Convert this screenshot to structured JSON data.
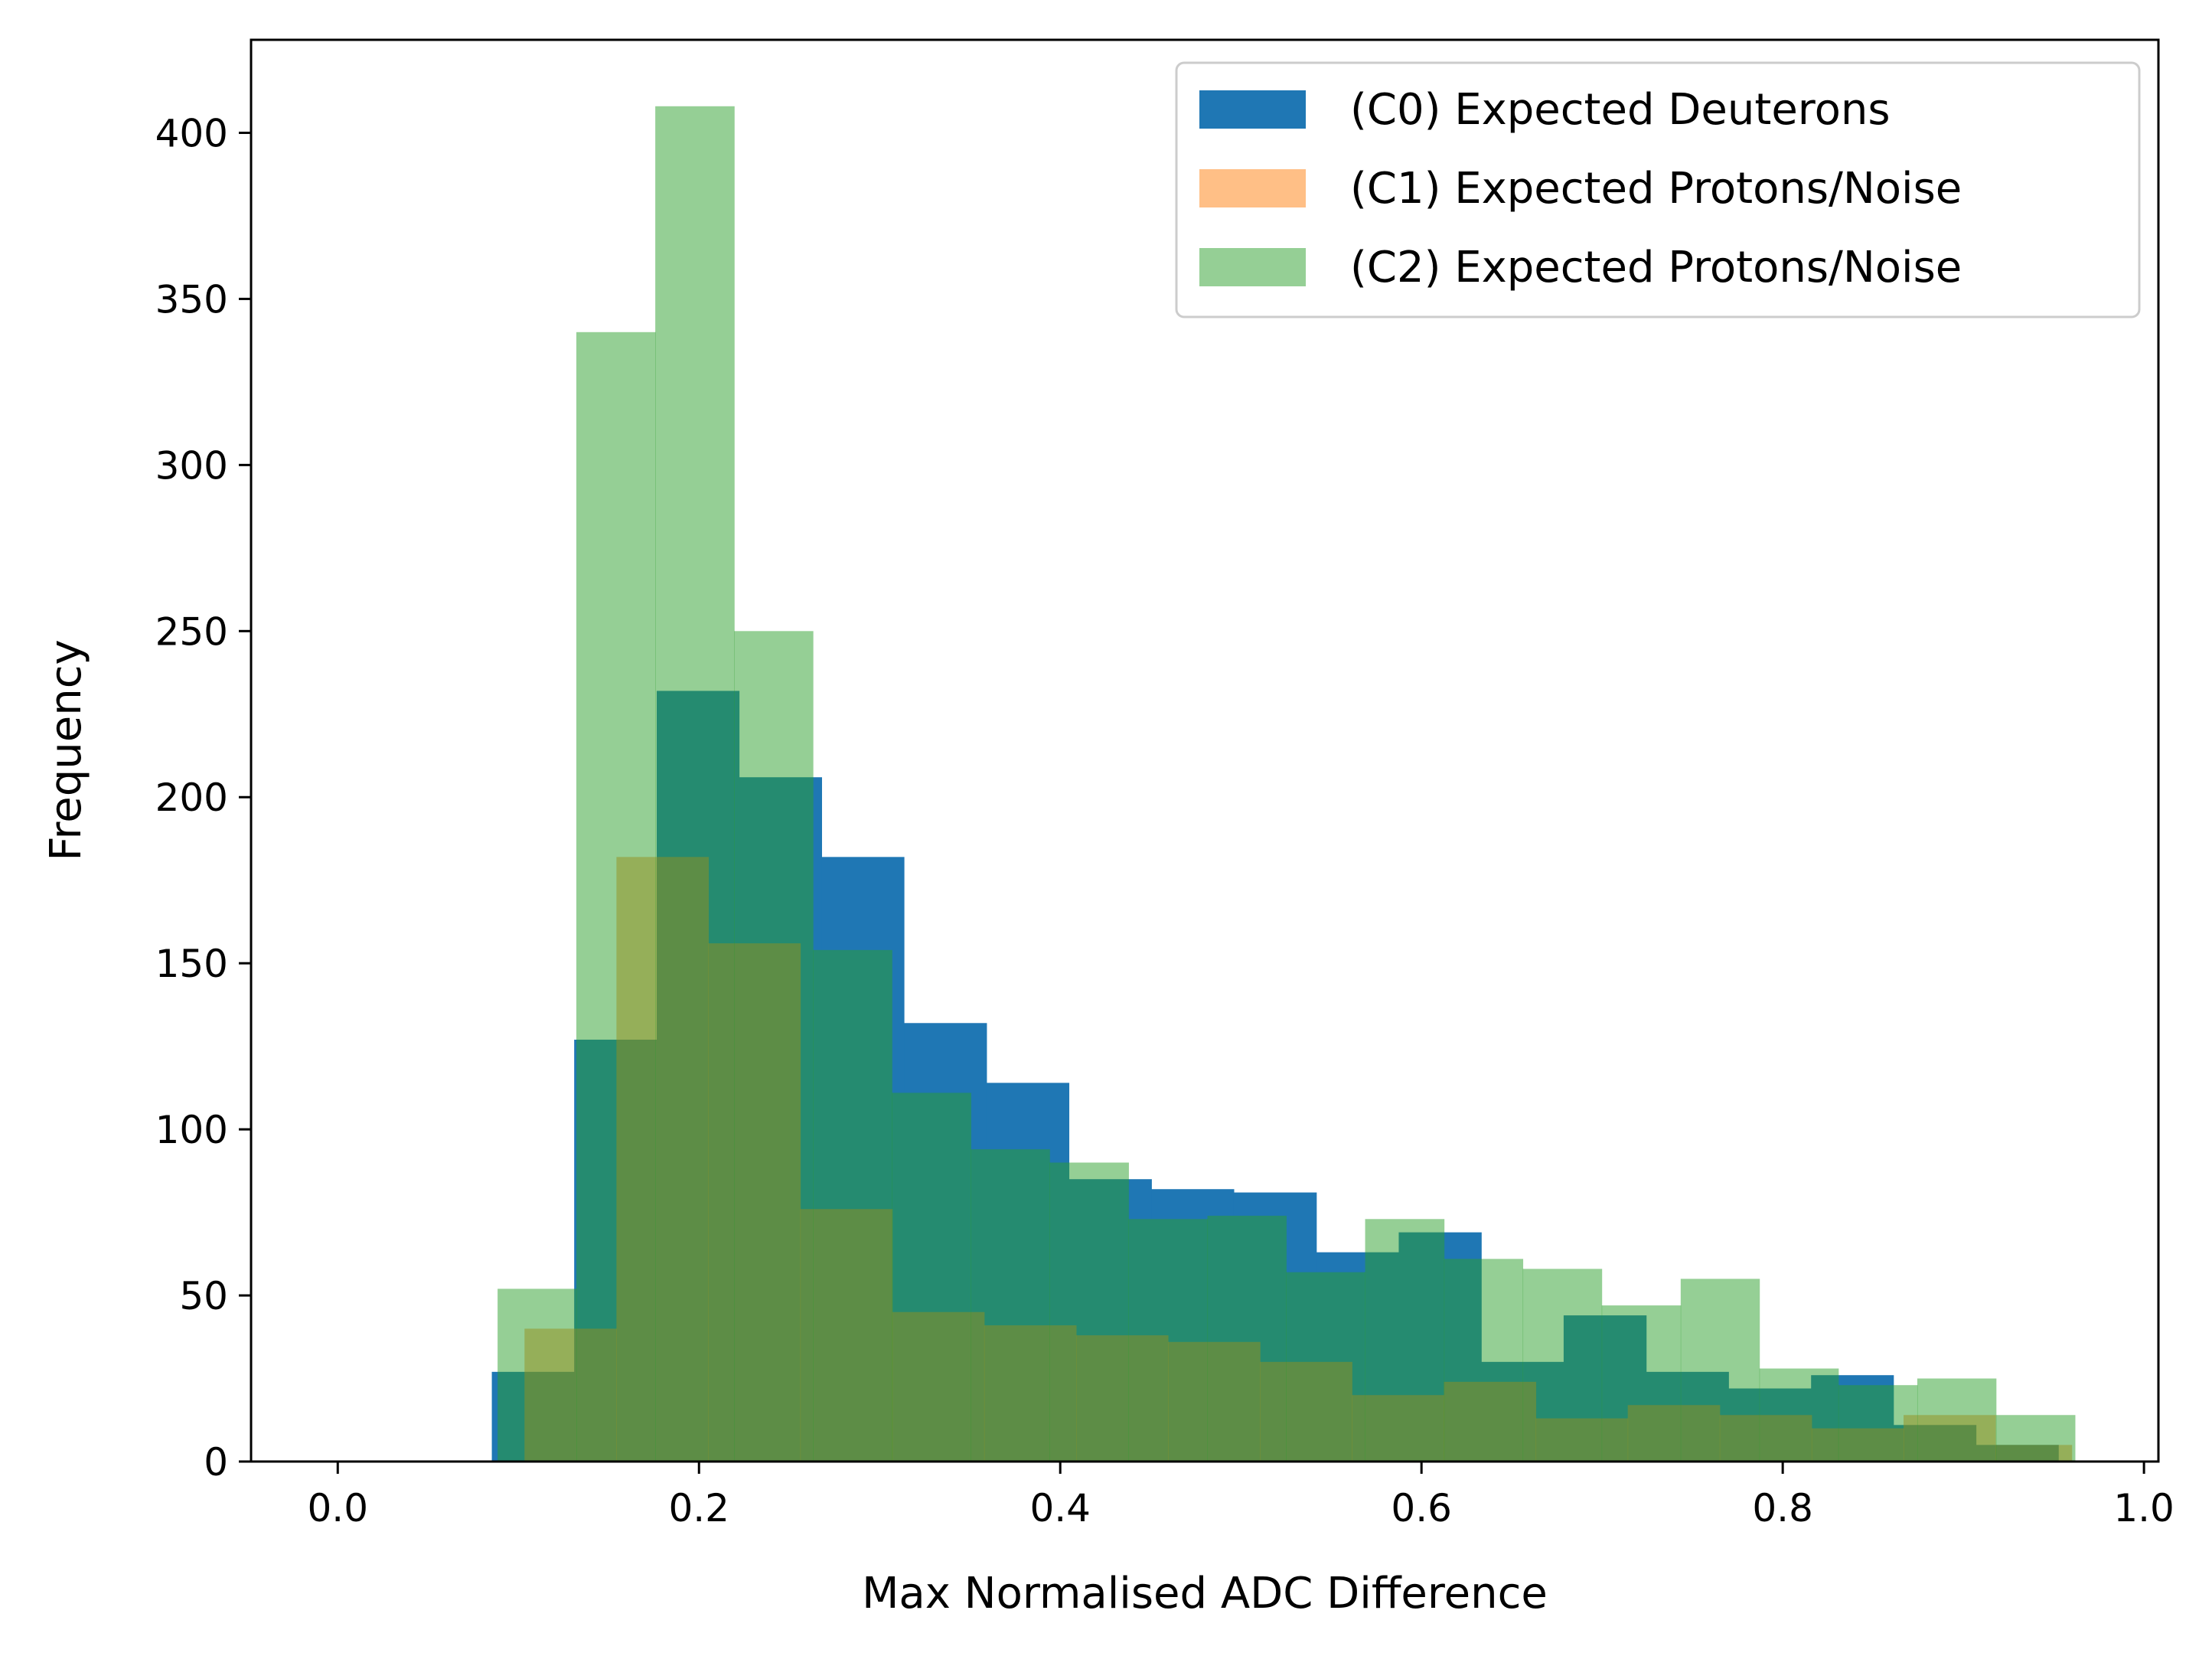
{
  "chart_data": {
    "type": "bar",
    "xlabel": "Max Normalised ADC Difference",
    "ylabel": "Frequency",
    "xlim": [
      -0.048,
      1.008
    ],
    "ylim": [
      0,
      428
    ],
    "x_ticks": [
      {
        "value": 0.0,
        "label": "0.0"
      },
      {
        "value": 0.2,
        "label": "0.2"
      },
      {
        "value": 0.4,
        "label": "0.4"
      },
      {
        "value": 0.6,
        "label": "0.6"
      },
      {
        "value": 0.8,
        "label": "0.8"
      },
      {
        "value": 1.0,
        "label": "1.0"
      }
    ],
    "y_ticks": [
      {
        "value": 0,
        "label": "0"
      },
      {
        "value": 50,
        "label": "50"
      },
      {
        "value": 100,
        "label": "100"
      },
      {
        "value": 150,
        "label": "150"
      },
      {
        "value": 200,
        "label": "200"
      },
      {
        "value": 250,
        "label": "250"
      },
      {
        "value": 300,
        "label": "300"
      },
      {
        "value": 350,
        "label": "350"
      },
      {
        "value": 400,
        "label": "400"
      }
    ],
    "grid": false,
    "legend_position": "top-right",
    "series": [
      {
        "name": "(C0) Expected Deuterons",
        "color": "#1f77b4",
        "opacity": 1.0,
        "bin_edges": [
          0.0,
          0.0853,
          0.1309,
          0.1766,
          0.2222,
          0.2679,
          0.3135,
          0.3592,
          0.4048,
          0.4505,
          0.4961,
          0.5418,
          0.5874,
          0.6331,
          0.6787,
          0.7244,
          0.77,
          0.8157,
          0.8613,
          0.907,
          0.9526,
          0.9602
        ],
        "values": [
          0,
          27,
          127,
          232,
          206,
          182,
          132,
          114,
          85,
          82,
          81,
          63,
          69,
          30,
          44,
          27,
          22,
          26,
          11,
          5,
          0
        ]
      },
      {
        "name": "(C1) Expected Protons/Noise",
        "color": "#ff7f0e",
        "opacity": 0.5,
        "bin_edges": [
          0.0,
          0.1034,
          0.1543,
          0.2052,
          0.2561,
          0.307,
          0.3579,
          0.4088,
          0.4597,
          0.5106,
          0.5615,
          0.6124,
          0.6633,
          0.7142,
          0.7651,
          0.816,
          0.8669,
          0.9178,
          0.96
        ],
        "values": [
          0,
          40,
          182,
          156,
          76,
          45,
          41,
          38,
          36,
          30,
          20,
          24,
          13,
          17,
          14,
          10,
          14,
          5
        ]
      },
      {
        "name": "(C2) Expected Protons/Noise",
        "color": "#2ca02c",
        "opacity": 0.5,
        "bin_edges": [
          0.0,
          0.0885,
          0.1321,
          0.1758,
          0.2195,
          0.2631,
          0.3068,
          0.3505,
          0.3941,
          0.4378,
          0.4815,
          0.5251,
          0.5688,
          0.6125,
          0.6561,
          0.6998,
          0.7435,
          0.7871,
          0.8308,
          0.8745,
          0.9181,
          0.9618
        ],
        "values": [
          0,
          52,
          340,
          408,
          250,
          154,
          111,
          94,
          90,
          73,
          74,
          57,
          73,
          61,
          58,
          47,
          55,
          28,
          23,
          25,
          14
        ]
      }
    ]
  }
}
